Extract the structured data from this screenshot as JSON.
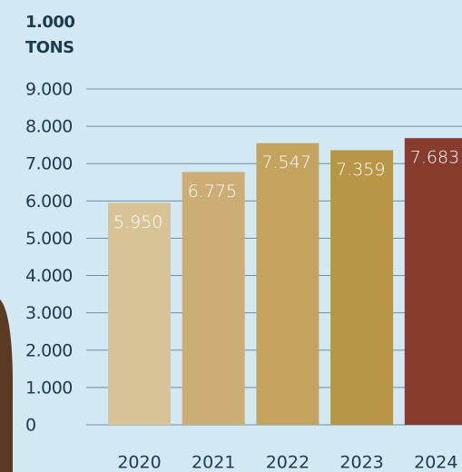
{
  "chart_data": {
    "type": "bar",
    "ylabel": [
      "1.000",
      "TONS"
    ],
    "categories": [
      "2020",
      "2021",
      "2022",
      "2023",
      "2024"
    ],
    "values": [
      5950,
      6775,
      7547,
      7359,
      7683
    ],
    "value_labels": [
      "5.950",
      "6.775",
      "7.547",
      "7.359",
      "7.683"
    ],
    "colors": [
      "#d8c396",
      "#ccad76",
      "#c4a35e",
      "#b99646",
      "#873c2e"
    ],
    "ylim": [
      0,
      9000
    ],
    "yticks": [
      0,
      {
        "value": 1000,
        "label": "1.000"
      },
      {
        "value": 2000,
        "label": "2.000"
      },
      {
        "value": 3000,
        "label": "3.000"
      },
      {
        "value": 4000,
        "label": "4.000"
      },
      {
        "value": 5000,
        "label": "5.000"
      },
      {
        "value": 6000,
        "label": "6.000"
      },
      {
        "value": 7000,
        "label": "7.000"
      },
      {
        "value": 8000,
        "label": "8.000"
      },
      {
        "value": 9000,
        "label": "9.000"
      }
    ],
    "grid": true
  }
}
